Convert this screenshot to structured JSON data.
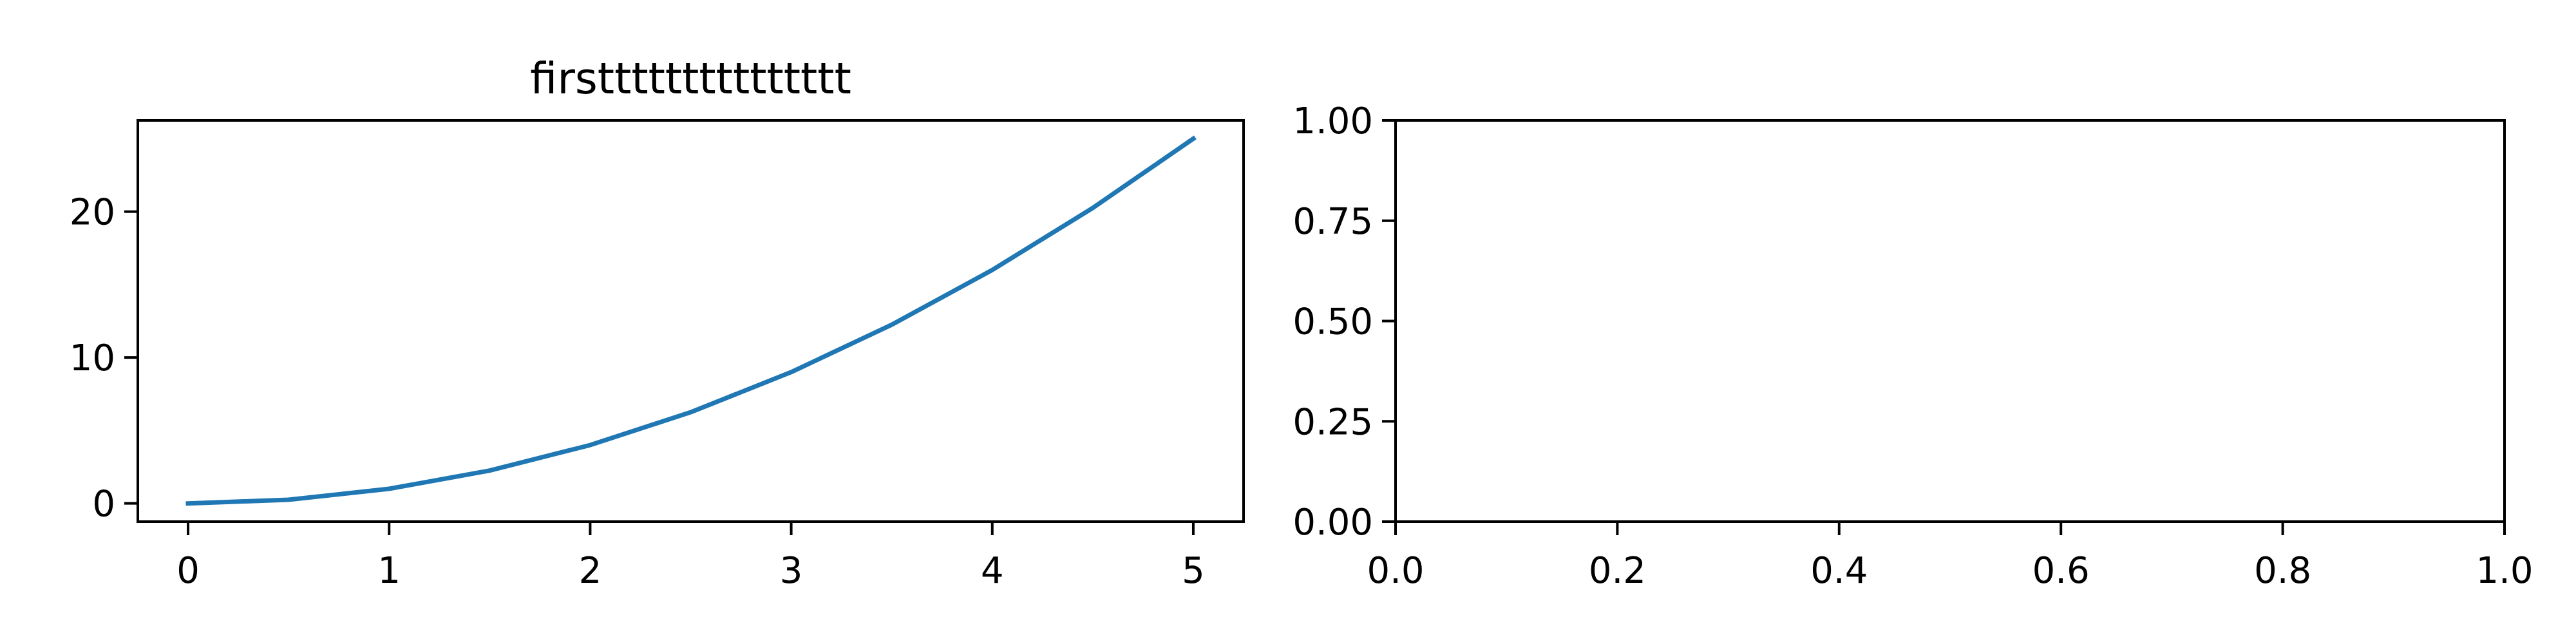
{
  "chart_data": [
    {
      "type": "line",
      "title": "firsttttttttttttttt",
      "xlabel": "",
      "ylabel": "",
      "xlim": [
        -0.25,
        5.25
      ],
      "ylim": [
        -1.25,
        26.25
      ],
      "xticks": [
        0,
        1,
        2,
        3,
        4,
        5
      ],
      "xtick_labels": [
        "0",
        "1",
        "2",
        "3",
        "4",
        "5"
      ],
      "yticks": [
        0,
        10,
        20
      ],
      "ytick_labels": [
        "0",
        "10",
        "20"
      ],
      "grid": false,
      "series": [
        {
          "x": [
            0,
            0.5,
            1,
            1.5,
            2,
            2.5,
            3,
            3.5,
            4,
            4.5,
            5
          ],
          "y": [
            0,
            0.25,
            1,
            2.25,
            4,
            6.25,
            9,
            12.25,
            16,
            20.25,
            25
          ]
        }
      ]
    },
    {
      "type": "line",
      "title": "",
      "xlabel": "",
      "ylabel": "",
      "xlim": [
        0,
        1
      ],
      "ylim": [
        0,
        1
      ],
      "xticks": [
        0,
        0.2,
        0.4,
        0.6,
        0.8,
        1
      ],
      "xtick_labels": [
        "0.0",
        "0.2",
        "0.4",
        "0.6",
        "0.8",
        "1.0"
      ],
      "yticks": [
        0,
        0.25,
        0.5,
        0.75,
        1
      ],
      "ytick_labels": [
        "0.00",
        "0.25",
        "0.50",
        "0.75",
        "1.00"
      ],
      "grid": false,
      "series": []
    }
  ],
  "colors": {
    "series": "#1f77b4",
    "axes": "#000000",
    "background": "#ffffff"
  }
}
